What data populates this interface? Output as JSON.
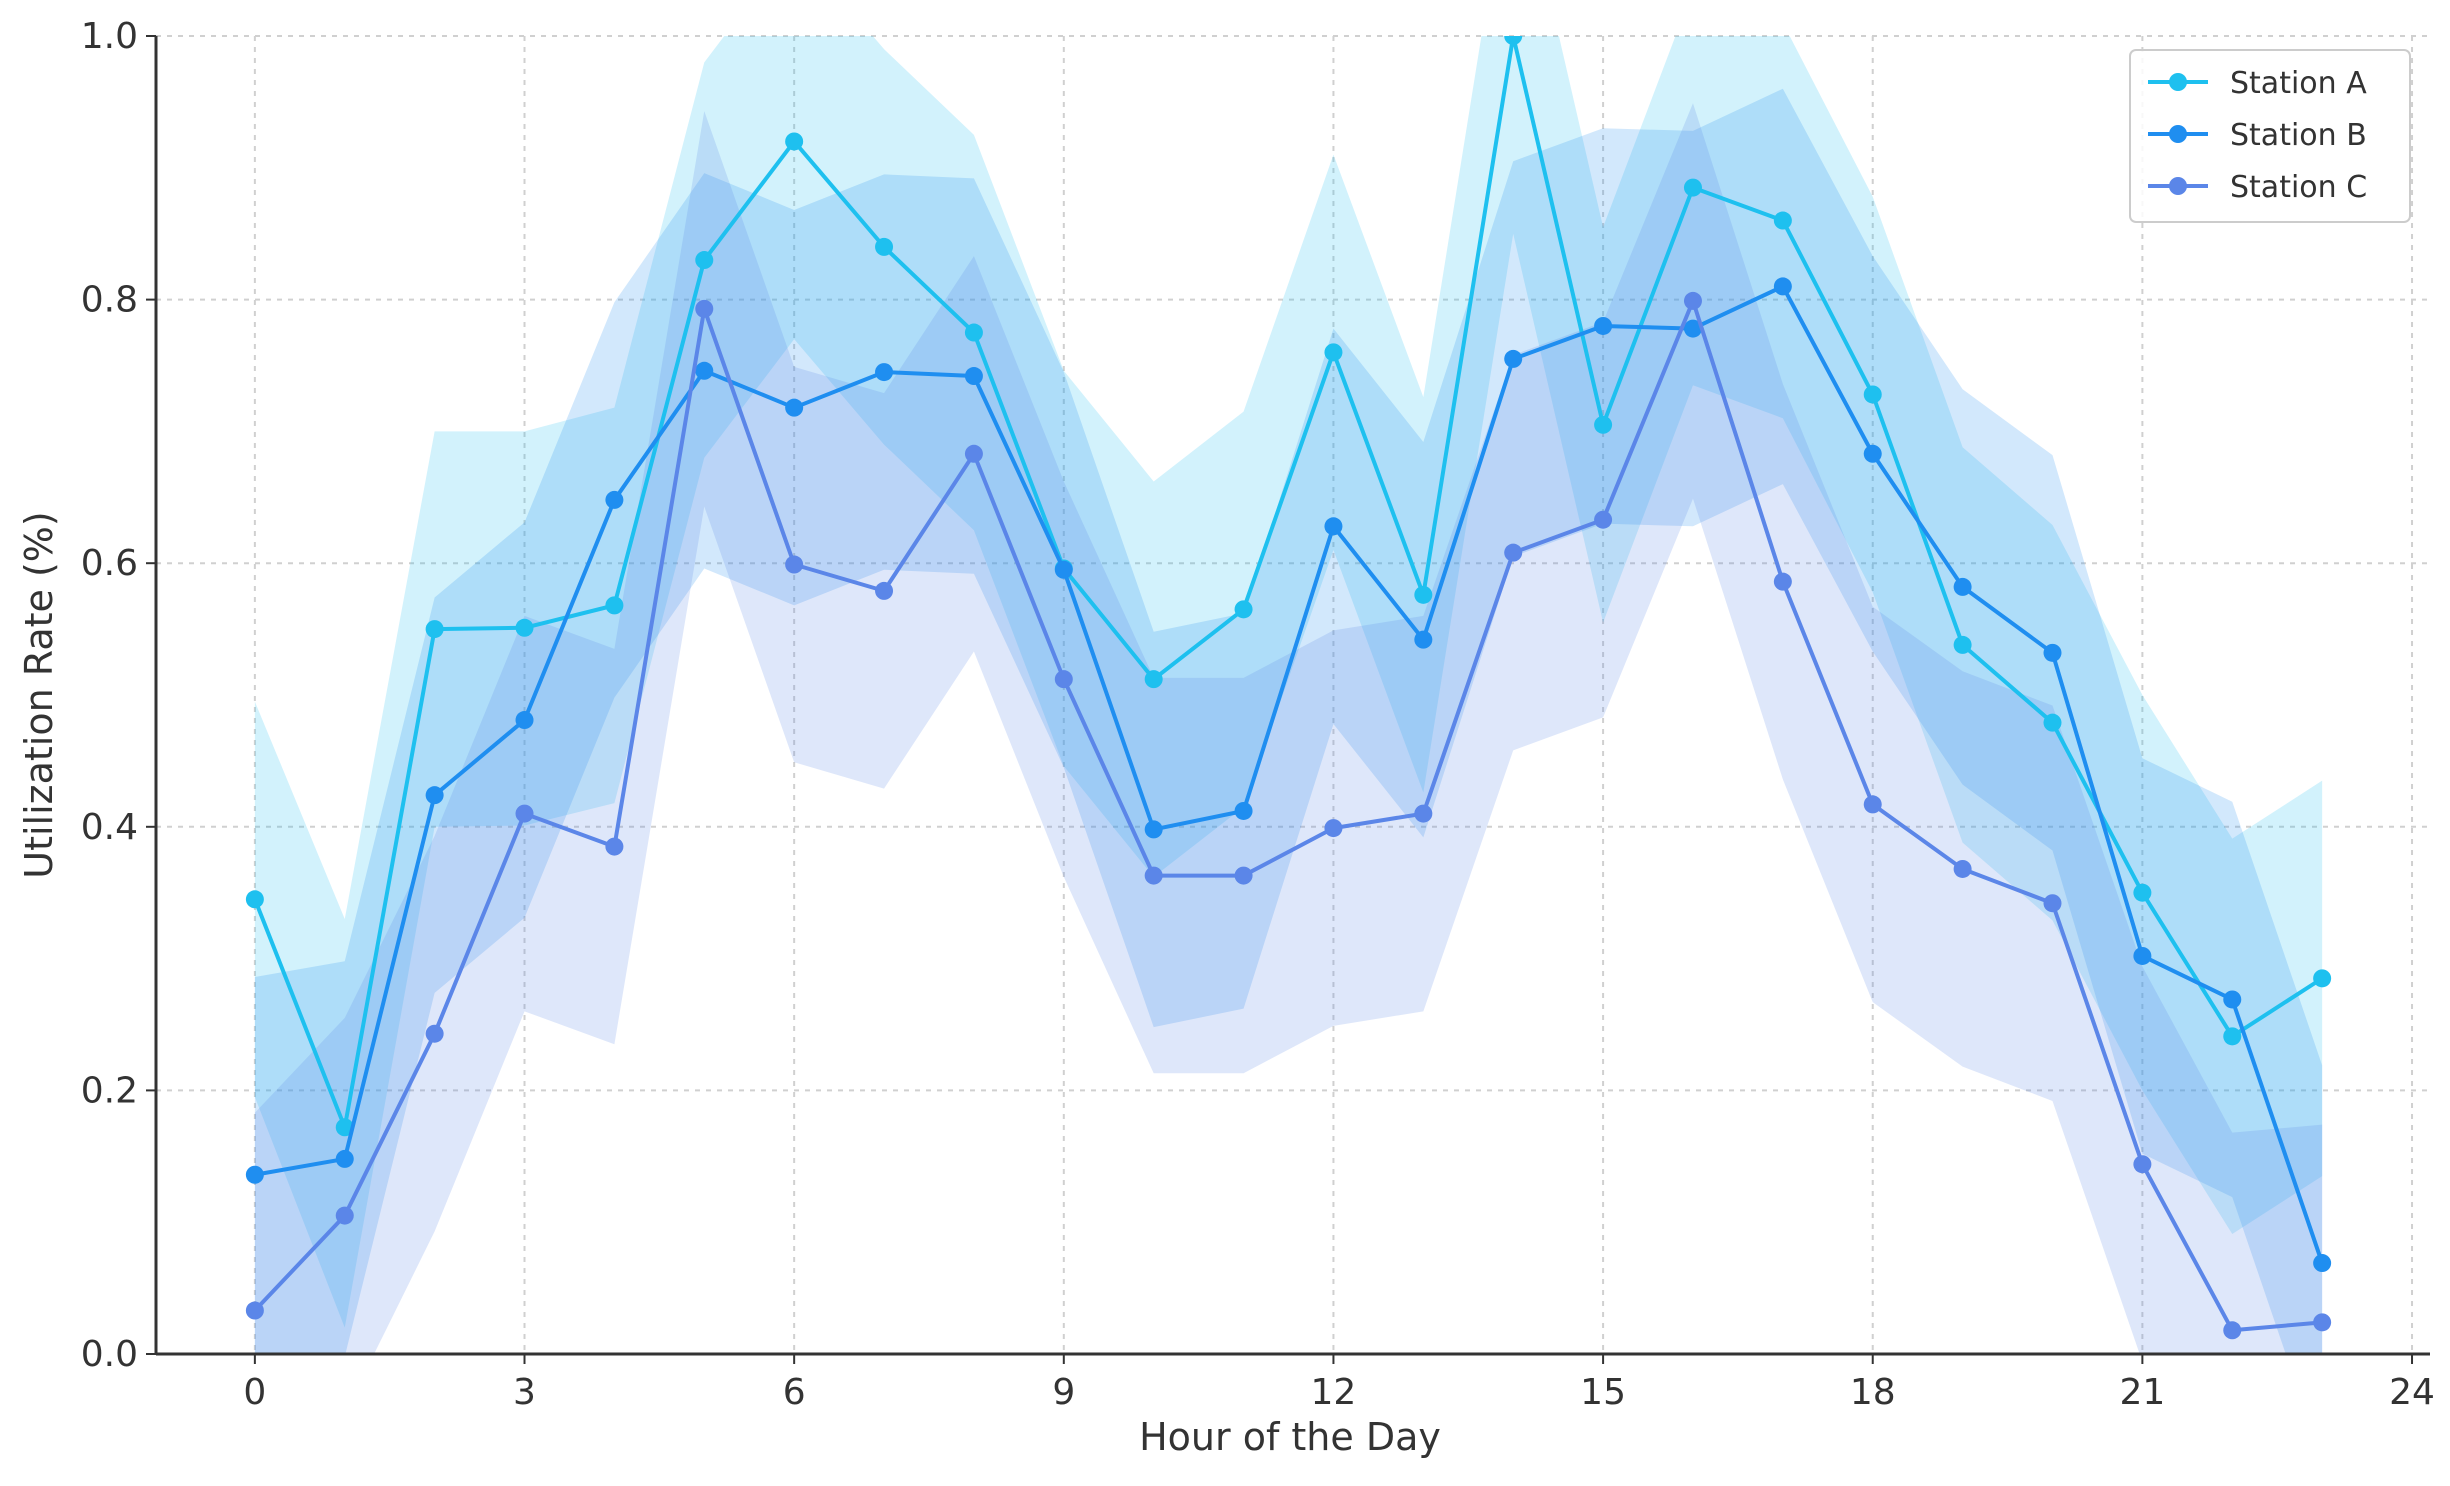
{
  "chart_data": {
    "type": "line",
    "title": "",
    "xlabel": "Hour of the Day",
    "ylabel": "Utilization Rate (%)",
    "xlim": [
      -1.1,
      24.2
    ],
    "ylim": [
      0.0,
      1.0
    ],
    "xticks": [
      0,
      3,
      6,
      9,
      12,
      15,
      18,
      21,
      24
    ],
    "yticks": [
      0.0,
      0.2,
      0.4,
      0.6,
      0.8,
      1.0
    ],
    "xtick_labels": [
      "0",
      "3",
      "6",
      "9",
      "12",
      "15",
      "18",
      "21",
      "24"
    ],
    "ytick_labels": [
      "0.0",
      "0.2",
      "0.4",
      "0.6",
      "0.8",
      "1.0"
    ],
    "grid": true,
    "legend_position": "top-right",
    "x": [
      0,
      1,
      2,
      3,
      4,
      5,
      6,
      7,
      8,
      9,
      10,
      11,
      12,
      13,
      14,
      15,
      16,
      17,
      18,
      19,
      20,
      21,
      22,
      23
    ],
    "series": [
      {
        "name": "Station A",
        "color": "#1ec0ef",
        "values": [
          0.345,
          0.172,
          0.55,
          0.551,
          0.568,
          0.83,
          0.92,
          0.84,
          0.775,
          0.596,
          0.512,
          0.565,
          0.76,
          0.576,
          1.0,
          0.705,
          0.885,
          0.86,
          0.728,
          0.538,
          0.479,
          0.35,
          0.241,
          0.285
        ],
        "upper": [
          0.495,
          0.33,
          0.7,
          0.7,
          0.718,
          0.98,
          1.07,
          0.99,
          0.925,
          0.746,
          0.662,
          0.715,
          0.91,
          0.726,
          1.15,
          0.855,
          1.035,
          1.01,
          0.878,
          0.688,
          0.629,
          0.5,
          0.391,
          0.435
        ],
        "lower": [
          0.195,
          0.02,
          0.4,
          0.401,
          0.418,
          0.68,
          0.77,
          0.69,
          0.625,
          0.446,
          0.362,
          0.415,
          0.61,
          0.426,
          0.85,
          0.555,
          0.735,
          0.71,
          0.578,
          0.388,
          0.329,
          0.2,
          0.091,
          0.135
        ]
      },
      {
        "name": "Station B",
        "color": "#1f8ef0",
        "values": [
          0.136,
          0.148,
          0.424,
          0.481,
          0.648,
          0.746,
          0.718,
          0.745,
          0.742,
          0.595,
          0.398,
          0.412,
          0.628,
          0.542,
          0.755,
          0.78,
          0.778,
          0.81,
          0.683,
          0.582,
          0.532,
          0.302,
          0.269,
          0.069
        ],
        "upper": [
          0.286,
          0.298,
          0.574,
          0.631,
          0.798,
          0.896,
          0.868,
          0.895,
          0.892,
          0.745,
          0.548,
          0.562,
          0.778,
          0.692,
          0.905,
          0.93,
          0.928,
          0.96,
          0.833,
          0.732,
          0.682,
          0.452,
          0.419,
          0.219
        ],
        "lower": [
          -0.014,
          -0.002,
          0.274,
          0.331,
          0.498,
          0.596,
          0.568,
          0.595,
          0.592,
          0.445,
          0.248,
          0.262,
          0.478,
          0.392,
          0.605,
          0.63,
          0.628,
          0.66,
          0.533,
          0.432,
          0.382,
          0.152,
          0.119,
          -0.081
        ]
      },
      {
        "name": "Station C",
        "color": "#5b86e8",
        "values": [
          0.033,
          0.105,
          0.243,
          0.41,
          0.385,
          0.793,
          0.599,
          0.579,
          0.683,
          0.512,
          0.363,
          0.363,
          0.399,
          0.41,
          0.608,
          0.633,
          0.799,
          0.586,
          0.417,
          0.368,
          0.342,
          0.144,
          0.018,
          0.024
        ],
        "upper": [
          0.183,
          0.255,
          0.393,
          0.56,
          0.535,
          0.943,
          0.749,
          0.729,
          0.833,
          0.662,
          0.513,
          0.513,
          0.549,
          0.56,
          0.758,
          0.783,
          0.949,
          0.736,
          0.567,
          0.518,
          0.492,
          0.294,
          0.168,
          0.174
        ],
        "lower": [
          -0.117,
          -0.045,
          0.093,
          0.26,
          0.235,
          0.643,
          0.449,
          0.429,
          0.533,
          0.362,
          0.213,
          0.213,
          0.249,
          0.26,
          0.458,
          0.483,
          0.649,
          0.436,
          0.267,
          0.218,
          0.192,
          -0.006,
          -0.132,
          -0.126
        ]
      }
    ]
  }
}
